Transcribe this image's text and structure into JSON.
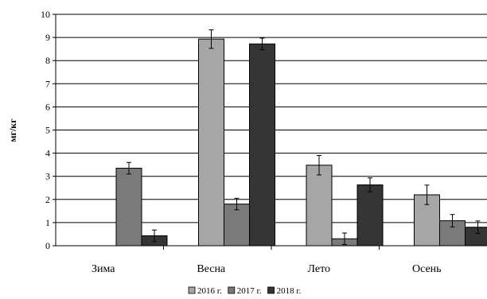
{
  "chart_data": {
    "type": "bar",
    "ylabel": "мг/кг",
    "ylim": [
      0,
      10
    ],
    "yticks": [
      0,
      1,
      2,
      3,
      4,
      5,
      6,
      7,
      8,
      9,
      10
    ],
    "grid": true,
    "legend_position": "bottom",
    "categories": [
      "Зима",
      "Весна",
      "Лето",
      "Осень"
    ],
    "series": [
      {
        "name": "2016 г.",
        "color": "#a6a6a6",
        "values": [
          null,
          8.93,
          3.48,
          2.2
        ],
        "errors": [
          null,
          0.4,
          0.42,
          0.42
        ]
      },
      {
        "name": "2017 г.",
        "color": "#7a7a7a",
        "values": [
          3.35,
          1.8,
          0.3,
          1.08
        ],
        "errors": [
          0.25,
          0.25,
          0.25,
          0.27
        ]
      },
      {
        "name": "2018 г.",
        "color": "#353535",
        "values": [
          0.43,
          8.72,
          2.63,
          0.8
        ],
        "errors": [
          0.25,
          0.25,
          0.3,
          0.27
        ]
      }
    ]
  }
}
